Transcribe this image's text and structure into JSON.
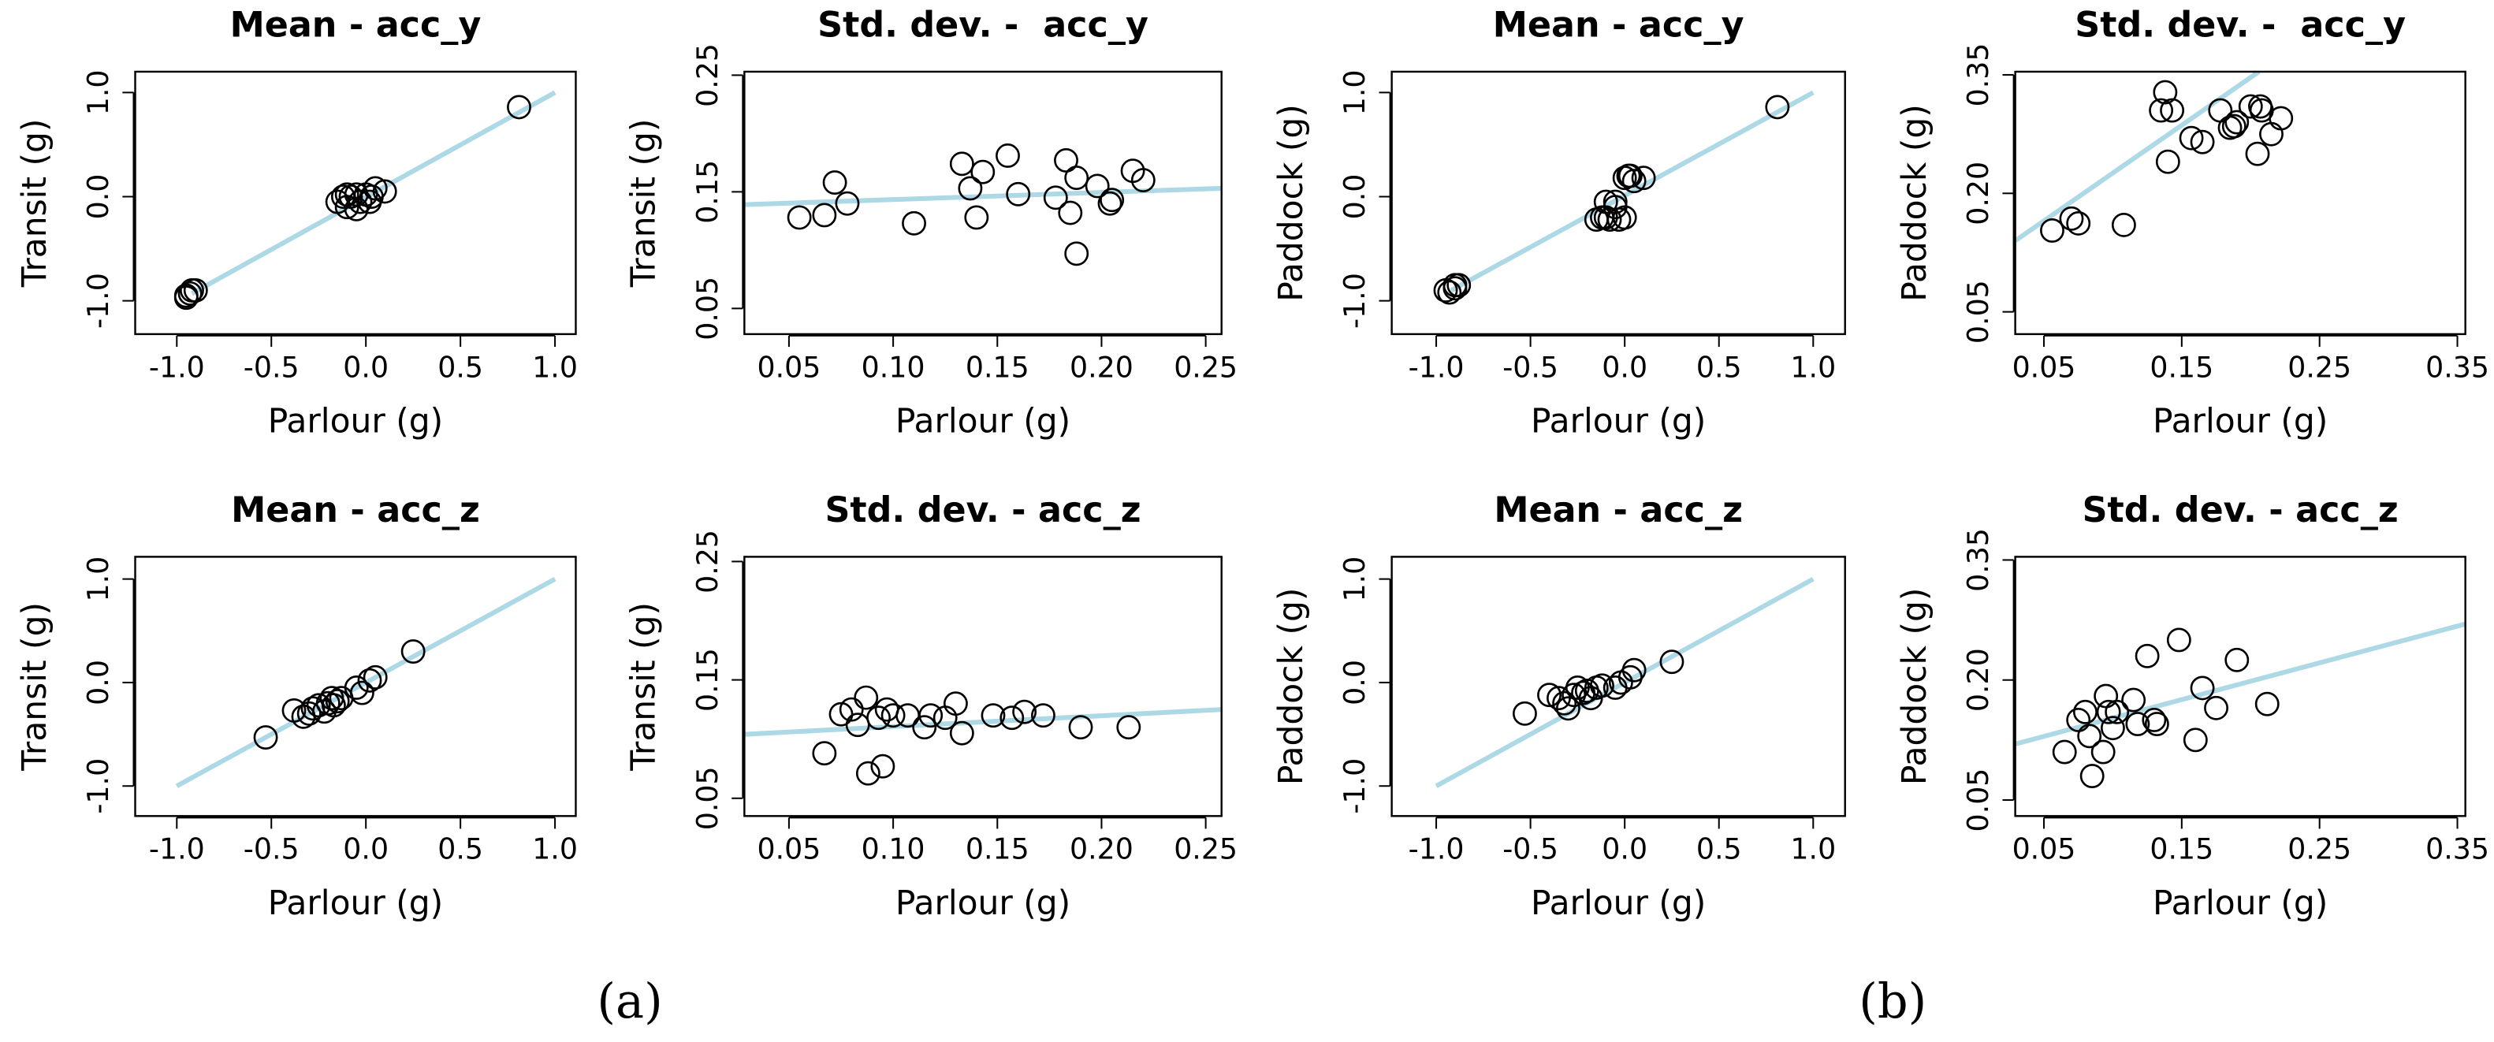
{
  "captions": [
    "(a)",
    "(b)"
  ],
  "chart_data": [
    {
      "type": "scatter",
      "title": "Mean - acc_y",
      "xlabel": "Parlour (g)",
      "ylabel": "Transit (g)",
      "color": "#000000",
      "x": [
        -0.95,
        -0.93,
        -0.9,
        -0.92,
        -0.95,
        -0.15,
        -0.12,
        -0.1,
        -0.08,
        -0.05,
        -0.1,
        -0.03,
        0.0,
        0.03,
        0.05,
        0.1,
        -0.05,
        0.02,
        0.81
      ],
      "values": [
        -0.95,
        -0.93,
        -0.9,
        -0.9,
        -0.97,
        -0.05,
        0.0,
        0.02,
        0.0,
        -0.12,
        -0.1,
        -0.05,
        0.02,
        0.0,
        0.08,
        0.05,
        0.02,
        -0.05,
        0.86
      ],
      "fit": {
        "x": [
          -0.92,
          1.0
        ],
        "y": [
          -0.93,
          1.0
        ],
        "color": "#add8e6"
      },
      "xlim": [
        -1.22,
        1.11
      ],
      "ylim": [
        -1.32,
        1.2
      ],
      "xticks": [
        {
          "value": -1.0,
          "label": "-1.0"
        },
        -0.5,
        {
          "value": 0.0,
          "label": "0.0"
        },
        0.5,
        {
          "value": 1.0,
          "label": "1.0"
        }
      ],
      "yticks": [
        {
          "value": -1.0,
          "label": "-1.0"
        },
        {
          "value": 0.0,
          "label": "0.0"
        },
        {
          "value": 1.0,
          "label": "1.0"
        }
      ]
    },
    {
      "type": "scatter",
      "title": "Std. dev. -  acc_y",
      "xlabel": "Parlour (g)",
      "ylabel": "Transit (g)",
      "color": "#000000",
      "x": [
        0.055,
        0.067,
        0.072,
        0.078,
        0.11,
        0.133,
        0.137,
        0.14,
        0.143,
        0.155,
        0.16,
        0.178,
        0.183,
        0.185,
        0.188,
        0.188,
        0.198,
        0.204,
        0.205,
        0.215,
        0.22
      ],
      "values": [
        0.128,
        0.13,
        0.158,
        0.14,
        0.123,
        0.174,
        0.153,
        0.128,
        0.167,
        0.181,
        0.148,
        0.145,
        0.177,
        0.132,
        0.097,
        0.162,
        0.155,
        0.14,
        0.143,
        0.168,
        0.16
      ],
      "fit": {
        "x": [
          0.0286,
          0.2576
        ],
        "y": [
          0.139,
          0.153
        ],
        "color": "#add8e6"
      },
      "xlim": [
        0.0286,
        0.2576
      ],
      "ylim": [
        0.028,
        0.253
      ],
      "xticks": [
        0.05,
        {
          "value": 0.1,
          "label": "0.10"
        },
        0.15,
        {
          "value": 0.2,
          "label": "0.20"
        },
        0.25
      ],
      "yticks": [
        0.05,
        0.15,
        0.25
      ]
    },
    {
      "type": "scatter",
      "title": "Mean - acc_y",
      "xlabel": "Parlour (g)",
      "ylabel": "Paddock (g)",
      "color": "#000000",
      "x": [
        -0.95,
        -0.93,
        -0.9,
        -0.88,
        -0.9,
        -0.15,
        -0.12,
        -0.1,
        -0.08,
        -0.05,
        -0.1,
        -0.03,
        0.0,
        0.0,
        0.03,
        0.05,
        0.1,
        -0.05,
        0.02,
        0.81
      ],
      "values": [
        -0.9,
        -0.92,
        -0.88,
        -0.85,
        -0.85,
        -0.22,
        -0.2,
        -0.2,
        -0.22,
        -0.1,
        -0.05,
        -0.22,
        -0.2,
        0.18,
        0.2,
        0.15,
        0.18,
        -0.05,
        0.2,
        0.86
      ],
      "fit": {
        "x": [
          -0.92,
          1.0
        ],
        "y": [
          -0.9,
          1.0
        ],
        "color": "#add8e6"
      },
      "xlim": [
        -1.236,
        1.169
      ],
      "ylim": [
        -1.32,
        1.2
      ],
      "xticks": [
        {
          "value": -1.0,
          "label": "-1.0"
        },
        -0.5,
        {
          "value": 0.0,
          "label": "0.0"
        },
        0.5,
        {
          "value": 1.0,
          "label": "1.0"
        }
      ],
      "yticks": [
        {
          "value": -1.0,
          "label": "-1.0"
        },
        {
          "value": 0.0,
          "label": "0.0"
        },
        {
          "value": 1.0,
          "label": "1.0"
        }
      ]
    },
    {
      "type": "scatter",
      "title": "Std. dev. -  acc_y",
      "xlabel": "Parlour (g)",
      "ylabel": "Paddock (g)",
      "color": "#000000",
      "x": [
        0.056,
        0.07,
        0.075,
        0.108,
        0.135,
        0.138,
        0.14,
        0.143,
        0.157,
        0.165,
        0.178,
        0.185,
        0.188,
        0.19,
        0.2,
        0.205,
        0.207,
        0.208,
        0.215,
        0.222
      ],
      "values": [
        0.153,
        0.168,
        0.162,
        0.16,
        0.305,
        0.328,
        0.24,
        0.305,
        0.27,
        0.265,
        0.305,
        0.283,
        0.285,
        0.29,
        0.31,
        0.25,
        0.31,
        0.305,
        0.275,
        0.295
      ],
      "fit": {
        "x": [
          0.0292,
          0.206
        ],
        "y": [
          0.14,
          0.354
        ],
        "color": "#add8e6"
      },
      "xlim": [
        0.0292,
        0.3558
      ],
      "ylim": [
        0.0218,
        0.354
      ],
      "xticks": [
        0.05,
        0.15,
        0.25,
        0.35
      ],
      "yticks": [
        0.05,
        {
          "value": 0.2,
          "label": "0.20"
        },
        0.35
      ]
    },
    {
      "type": "scatter",
      "title": "Mean - acc_z",
      "xlabel": "Parlour (g)",
      "ylabel": "Transit (g)",
      "color": "#000000",
      "x": [
        -0.53,
        -0.38,
        -0.33,
        -0.3,
        -0.28,
        -0.25,
        -0.22,
        -0.2,
        -0.18,
        -0.17,
        -0.15,
        -0.13,
        -0.05,
        -0.02,
        0.02,
        0.05,
        0.25
      ],
      "values": [
        -0.53,
        -0.27,
        -0.33,
        -0.3,
        -0.25,
        -0.22,
        -0.28,
        -0.2,
        -0.15,
        -0.22,
        -0.18,
        -0.15,
        -0.05,
        -0.1,
        0.02,
        0.05,
        0.3
      ],
      "fit": {
        "x": [
          -1.0,
          1.0
        ],
        "y": [
          -1.0,
          1.0
        ],
        "color": "#add8e6"
      },
      "xlim": [
        -1.22,
        1.11
      ],
      "ylim": [
        -1.29,
        1.215
      ],
      "xticks": [
        {
          "value": -1.0,
          "label": "-1.0"
        },
        -0.5,
        {
          "value": 0.0,
          "label": "0.0"
        },
        0.5,
        {
          "value": 1.0,
          "label": "1.0"
        }
      ],
      "yticks": [
        {
          "value": -1.0,
          "label": "-1.0"
        },
        {
          "value": 0.0,
          "label": "0.0"
        },
        {
          "value": 1.0,
          "label": "1.0"
        }
      ]
    },
    {
      "type": "scatter",
      "title": "Std. dev. - acc_z",
      "xlabel": "Parlour (g)",
      "ylabel": "Transit (g)",
      "color": "#000000",
      "x": [
        0.067,
        0.075,
        0.08,
        0.083,
        0.087,
        0.088,
        0.093,
        0.095,
        0.097,
        0.1,
        0.107,
        0.115,
        0.118,
        0.125,
        0.13,
        0.133,
        0.148,
        0.157,
        0.163,
        0.172,
        0.19,
        0.213
      ],
      "values": [
        0.088,
        0.121,
        0.125,
        0.112,
        0.135,
        0.071,
        0.118,
        0.077,
        0.125,
        0.12,
        0.12,
        0.11,
        0.12,
        0.118,
        0.13,
        0.105,
        0.12,
        0.118,
        0.123,
        0.12,
        0.11,
        0.11
      ],
      "fit": {
        "x": [
          0.0286,
          0.2576
        ],
        "y": [
          0.104,
          0.125
        ],
        "color": "#add8e6"
      },
      "xlim": [
        0.0286,
        0.2576
      ],
      "ylim": [
        0.035,
        0.254
      ],
      "xticks": [
        0.05,
        {
          "value": 0.1,
          "label": "0.10"
        },
        0.15,
        {
          "value": 0.2,
          "label": "0.20"
        },
        0.25
      ],
      "yticks": [
        0.05,
        0.15,
        0.25
      ]
    },
    {
      "type": "scatter",
      "title": "Mean - acc_z",
      "xlabel": "Parlour (g)",
      "ylabel": "Paddock (g)",
      "color": "#000000",
      "x": [
        -0.53,
        -0.4,
        -0.35,
        -0.32,
        -0.3,
        -0.27,
        -0.25,
        -0.22,
        -0.2,
        -0.18,
        -0.15,
        -0.12,
        -0.05,
        -0.02,
        0.03,
        0.05,
        0.25
      ],
      "values": [
        -0.3,
        -0.12,
        -0.15,
        -0.2,
        -0.25,
        -0.12,
        -0.05,
        -0.1,
        -0.08,
        -0.15,
        -0.05,
        -0.03,
        -0.05,
        0.0,
        0.05,
        0.12,
        0.2
      ],
      "fit": {
        "x": [
          -1.0,
          1.0
        ],
        "y": [
          -1.0,
          1.0
        ],
        "color": "#add8e6"
      },
      "xlim": [
        -1.236,
        1.169
      ],
      "ylim": [
        -1.29,
        1.215
      ],
      "xticks": [
        {
          "value": -1.0,
          "label": "-1.0"
        },
        -0.5,
        {
          "value": 0.0,
          "label": "0.0"
        },
        0.5,
        {
          "value": 1.0,
          "label": "1.0"
        }
      ],
      "yticks": [
        {
          "value": -1.0,
          "label": "-1.0"
        },
        {
          "value": 0.0,
          "label": "0.0"
        },
        {
          "value": 1.0,
          "label": "1.0"
        }
      ]
    },
    {
      "type": "scatter",
      "title": "Std. dev. - acc_z",
      "xlabel": "Parlour (g)",
      "ylabel": "Paddock (g)",
      "color": "#000000",
      "x": [
        0.065,
        0.075,
        0.08,
        0.083,
        0.085,
        0.093,
        0.095,
        0.097,
        0.1,
        0.103,
        0.115,
        0.118,
        0.125,
        0.13,
        0.132,
        0.148,
        0.16,
        0.165,
        0.175,
        0.19,
        0.212
      ],
      "values": [
        0.11,
        0.15,
        0.16,
        0.13,
        0.08,
        0.11,
        0.18,
        0.16,
        0.14,
        0.16,
        0.175,
        0.145,
        0.23,
        0.15,
        0.145,
        0.25,
        0.125,
        0.19,
        0.165,
        0.225,
        0.17
      ],
      "fit": {
        "x": [
          0.0292,
          0.3558
        ],
        "y": [
          0.12,
          0.27
        ],
        "color": "#add8e6"
      },
      "xlim": [
        0.0292,
        0.3558
      ],
      "ylim": [
        0.03,
        0.354
      ],
      "xticks": [
        0.05,
        0.15,
        0.25,
        0.35
      ],
      "yticks": [
        0.05,
        {
          "value": 0.2,
          "label": "0.20"
        },
        0.35
      ]
    }
  ]
}
